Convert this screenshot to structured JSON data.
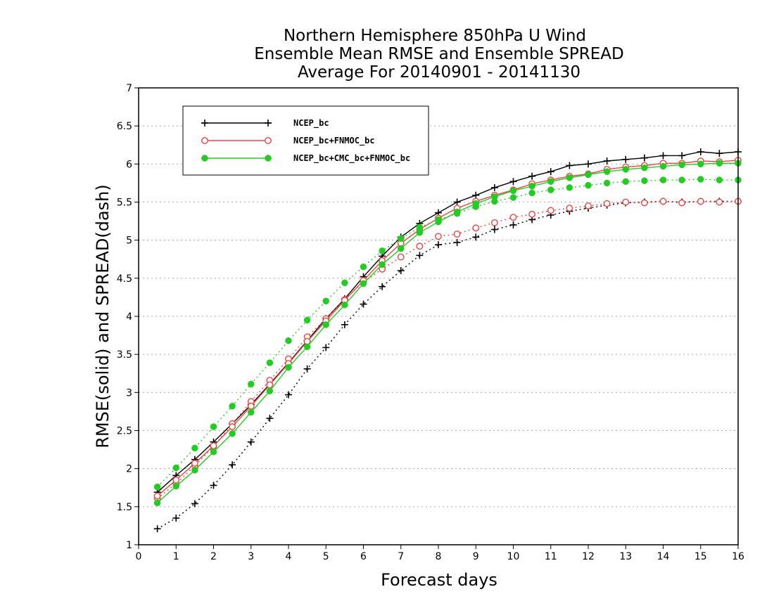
{
  "chart_data": {
    "type": "line",
    "title_lines": [
      "Northern Hemisphere 850hPa U Wind",
      "Ensemble Mean RMSE and Ensemble SPREAD",
      "Average For 20140901 - 20141130"
    ],
    "xlabel": "Forecast days",
    "ylabel": "RMSE(solid) and SPREAD(dash)",
    "xlim": [
      0,
      16
    ],
    "ylim": [
      1,
      7
    ],
    "x_ticks": [
      "0",
      "1",
      "2",
      "3",
      "4",
      "5",
      "6",
      "7",
      "8",
      "9",
      "10",
      "11",
      "12",
      "13",
      "14",
      "15",
      "16"
    ],
    "y_ticks": [
      "1",
      "1.5",
      "2",
      "2.5",
      "3",
      "3.5",
      "4",
      "4.5",
      "5",
      "5.5",
      "6",
      "6.5",
      "7"
    ],
    "grid": "horizontal-dotted",
    "legend_position": "top-left",
    "x": [
      0.5,
      1,
      1.5,
      2,
      2.5,
      3,
      3.5,
      4,
      4.5,
      5,
      5.5,
      6,
      6.5,
      7,
      7.5,
      8,
      8.5,
      9,
      9.5,
      10,
      10.5,
      11,
      11.5,
      12,
      12.5,
      13,
      13.5,
      14,
      14.5,
      15,
      15.5,
      16
    ],
    "series": [
      {
        "name": "NCEP_bc",
        "color": "#000000",
        "marker": "plus",
        "rmse": [
          1.69,
          1.91,
          2.12,
          2.35,
          2.59,
          2.84,
          3.11,
          3.39,
          3.68,
          3.97,
          4.23,
          4.52,
          4.79,
          5.04,
          5.22,
          5.36,
          5.5,
          5.59,
          5.69,
          5.77,
          5.84,
          5.9,
          5.98,
          6.0,
          6.04,
          6.06,
          6.08,
          6.11,
          6.11,
          6.16,
          6.14,
          6.16
        ],
        "spread": [
          1.21,
          1.35,
          1.54,
          1.78,
          2.05,
          2.35,
          2.66,
          2.97,
          3.31,
          3.59,
          3.89,
          4.16,
          4.39,
          4.6,
          4.8,
          4.94,
          4.97,
          5.04,
          5.14,
          5.2,
          5.27,
          5.33,
          5.38,
          5.42,
          5.46,
          5.49,
          5.5,
          5.51,
          5.5,
          5.51,
          5.51,
          5.51
        ]
      },
      {
        "name": "NCEP_bc+FNMOC_bc",
        "color": "#ee4444",
        "marker": "open-circle",
        "rmse": [
          1.64,
          1.85,
          2.07,
          2.3,
          2.55,
          2.82,
          3.1,
          3.38,
          3.67,
          3.94,
          4.21,
          4.47,
          4.73,
          4.96,
          5.14,
          5.29,
          5.42,
          5.51,
          5.59,
          5.66,
          5.74,
          5.79,
          5.84,
          5.87,
          5.93,
          5.96,
          5.98,
          6.01,
          6.01,
          6.04,
          6.03,
          6.05
        ],
        "spread": [
          1.61,
          1.8,
          2.04,
          2.29,
          2.59,
          2.88,
          3.16,
          3.44,
          3.73,
          3.97,
          4.22,
          4.45,
          4.62,
          4.78,
          4.92,
          5.05,
          5.08,
          5.16,
          5.23,
          5.3,
          5.34,
          5.39,
          5.42,
          5.45,
          5.48,
          5.5,
          5.49,
          5.51,
          5.49,
          5.51,
          5.5,
          5.51
        ]
      },
      {
        "name": "NCEP_bc+CMC_bc+FNMOC_bc",
        "color": "#22cc22",
        "marker": "filled-circle",
        "rmse": [
          1.55,
          1.77,
          1.98,
          2.22,
          2.46,
          2.74,
          3.02,
          3.33,
          3.6,
          3.89,
          4.15,
          4.43,
          4.68,
          4.89,
          5.1,
          5.24,
          5.37,
          5.48,
          5.57,
          5.65,
          5.71,
          5.77,
          5.82,
          5.86,
          5.9,
          5.93,
          5.95,
          5.97,
          5.99,
          6.0,
          6.01,
          6.01
        ],
        "spread": [
          1.76,
          2.01,
          2.27,
          2.55,
          2.82,
          3.11,
          3.39,
          3.68,
          3.95,
          4.2,
          4.44,
          4.65,
          4.86,
          5.02,
          5.17,
          5.27,
          5.35,
          5.44,
          5.51,
          5.56,
          5.62,
          5.66,
          5.69,
          5.72,
          5.75,
          5.77,
          5.78,
          5.79,
          5.79,
          5.8,
          5.79,
          5.79
        ]
      }
    ]
  }
}
